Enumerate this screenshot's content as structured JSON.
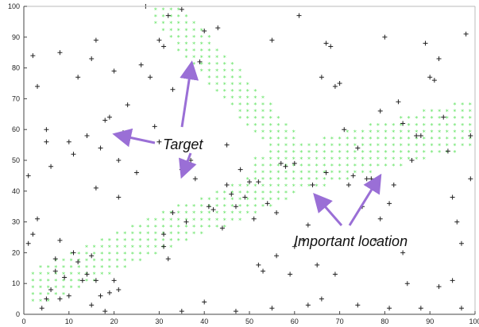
{
  "chart_data": {
    "type": "scatter",
    "xlim": [
      0,
      100
    ],
    "ylim": [
      0,
      100
    ],
    "x_ticks": [
      "0",
      "10",
      "20",
      "30",
      "40",
      "50",
      "60",
      "70",
      "80",
      "90",
      "100"
    ],
    "y_ticks": [
      "0",
      "10",
      "20",
      "30",
      "40",
      "50",
      "60",
      "70",
      "80",
      "90",
      "100"
    ],
    "grid": false,
    "legend": "none",
    "colors": {
      "scatter_plus": "#222222",
      "region_star": "#5fe35f",
      "arrow": "#9a6fd6"
    },
    "scatter_points": [
      [
        1,
        23
      ],
      [
        2,
        26
      ],
      [
        3,
        31
      ],
      [
        4,
        2
      ],
      [
        5,
        5
      ],
      [
        6,
        8
      ],
      [
        7,
        14
      ],
      [
        7,
        18
      ],
      [
        8,
        24
      ],
      [
        8,
        5
      ],
      [
        9,
        12
      ],
      [
        10,
        6
      ],
      [
        11,
        20
      ],
      [
        12,
        17
      ],
      [
        13,
        11
      ],
      [
        14,
        13
      ],
      [
        15,
        19
      ],
      [
        15,
        3
      ],
      [
        16,
        11
      ],
      [
        17,
        6
      ],
      [
        18,
        1
      ],
      [
        19,
        7
      ],
      [
        20,
        11
      ],
      [
        21,
        8
      ],
      [
        1,
        45
      ],
      [
        2,
        84
      ],
      [
        3,
        74
      ],
      [
        5,
        60
      ],
      [
        5,
        56
      ],
      [
        6,
        48
      ],
      [
        8,
        85
      ],
      [
        10,
        56
      ],
      [
        11,
        52
      ],
      [
        12,
        77
      ],
      [
        14,
        58
      ],
      [
        15,
        83
      ],
      [
        16,
        89
      ],
      [
        16,
        41
      ],
      [
        17,
        54
      ],
      [
        18,
        63
      ],
      [
        19,
        64
      ],
      [
        20,
        79
      ],
      [
        21,
        38
      ],
      [
        21,
        50
      ],
      [
        22,
        59
      ],
      [
        23,
        68
      ],
      [
        25,
        46
      ],
      [
        26,
        81
      ],
      [
        27,
        100
      ],
      [
        28,
        77
      ],
      [
        29,
        61
      ],
      [
        30,
        89
      ],
      [
        30,
        56
      ],
      [
        31,
        87
      ],
      [
        32,
        97
      ],
      [
        33,
        33
      ],
      [
        31,
        22
      ],
      [
        31,
        26
      ],
      [
        32,
        18
      ],
      [
        33,
        73
      ],
      [
        35,
        47
      ],
      [
        35,
        99
      ],
      [
        36,
        30
      ],
      [
        37,
        50
      ],
      [
        38,
        44
      ],
      [
        39,
        82
      ],
      [
        40,
        92
      ],
      [
        41,
        35
      ],
      [
        42,
        34
      ],
      [
        43,
        93
      ],
      [
        44,
        28
      ],
      [
        45,
        42
      ],
      [
        46,
        39
      ],
      [
        47,
        35
      ],
      [
        48,
        47
      ],
      [
        49,
        38
      ],
      [
        50,
        43
      ],
      [
        51,
        31
      ],
      [
        52,
        16
      ],
      [
        53,
        14
      ],
      [
        54,
        36
      ],
      [
        55,
        89
      ],
      [
        56,
        19
      ],
      [
        57,
        49
      ],
      [
        58,
        48
      ],
      [
        59,
        13
      ],
      [
        60,
        22
      ],
      [
        61,
        97
      ],
      [
        62,
        24
      ],
      [
        63,
        29
      ],
      [
        64,
        42
      ],
      [
        65,
        16
      ],
      [
        66,
        77
      ],
      [
        67,
        88
      ],
      [
        68,
        87
      ],
      [
        69,
        74
      ],
      [
        70,
        75
      ],
      [
        71,
        60
      ],
      [
        72,
        42
      ],
      [
        73,
        45
      ],
      [
        74,
        54
      ],
      [
        75,
        35
      ],
      [
        76,
        44
      ],
      [
        77,
        44
      ],
      [
        78,
        24
      ],
      [
        79,
        31
      ],
      [
        80,
        90
      ],
      [
        81,
        36
      ],
      [
        82,
        42
      ],
      [
        83,
        69
      ],
      [
        84,
        20
      ],
      [
        85,
        10
      ],
      [
        86,
        50
      ],
      [
        87,
        58
      ],
      [
        88,
        58
      ],
      [
        89,
        88
      ],
      [
        90,
        77
      ],
      [
        91,
        76
      ],
      [
        92,
        83
      ],
      [
        93,
        64
      ],
      [
        94,
        53
      ],
      [
        95,
        38
      ],
      [
        96,
        30
      ],
      [
        97,
        23
      ],
      [
        98,
        91
      ],
      [
        99,
        58
      ],
      [
        99,
        44
      ],
      [
        88,
        2
      ],
      [
        66,
        5
      ],
      [
        63,
        3
      ],
      [
        55,
        2
      ],
      [
        47,
        1
      ],
      [
        40,
        4
      ],
      [
        35,
        1
      ],
      [
        69,
        13
      ],
      [
        74,
        3
      ],
      [
        81,
        2
      ],
      [
        92,
        9
      ],
      [
        95,
        11
      ],
      [
        97,
        2
      ],
      [
        56,
        33
      ],
      [
        52,
        43
      ],
      [
        60,
        49
      ],
      [
        45,
        55
      ],
      [
        67,
        46
      ],
      [
        79,
        66
      ],
      [
        84,
        62
      ]
    ]
  },
  "annotations": {
    "target_label": "Target",
    "important_label": "Important location"
  }
}
